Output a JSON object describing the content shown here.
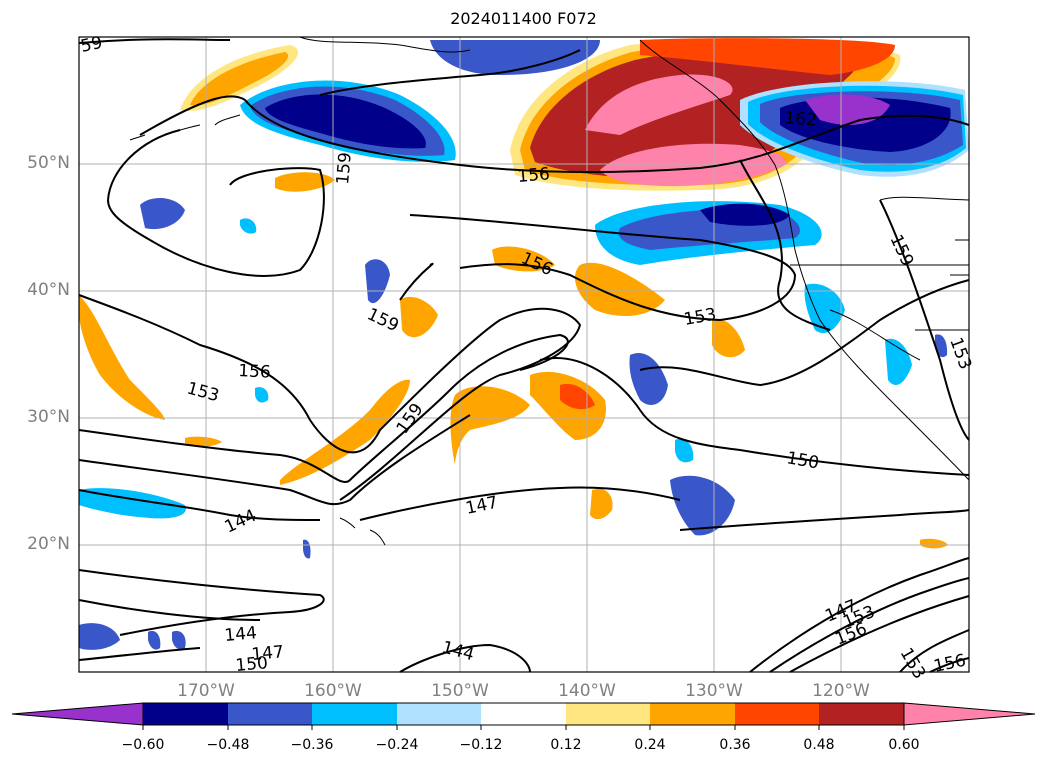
{
  "title": "2024011400 F072",
  "map": {
    "lon_range": [
      -180,
      -110
    ],
    "lat_range": [
      10,
      60
    ],
    "lat_labels": [
      "50°N",
      "40°N",
      "30°N",
      "20°N"
    ],
    "lon_labels": [
      "170°W",
      "160°W",
      "150°W",
      "140°W",
      "130°W",
      "120°W"
    ],
    "contour_labels": [
      "59",
      "159",
      "162",
      "156",
      "156",
      "159",
      "153",
      "156",
      "153",
      "159",
      "150",
      "147",
      "144",
      "144",
      "147",
      "150",
      "147",
      "153",
      "156",
      "153",
      "156",
      "153",
      "159",
      "144"
    ]
  },
  "colorbar": {
    "ticks": [
      "−0.60",
      "−0.48",
      "−0.36",
      "−0.24",
      "−0.12",
      "0.12",
      "0.24",
      "0.36",
      "0.48",
      "0.60"
    ],
    "colors": [
      "#9932cc",
      "#00008b",
      "#3a57c9",
      "#00bfff",
      "#b0e0ff",
      "#ffffff",
      "#ffe680",
      "#ffa500",
      "#ff4500",
      "#b22222",
      "#ff82ab"
    ]
  }
}
